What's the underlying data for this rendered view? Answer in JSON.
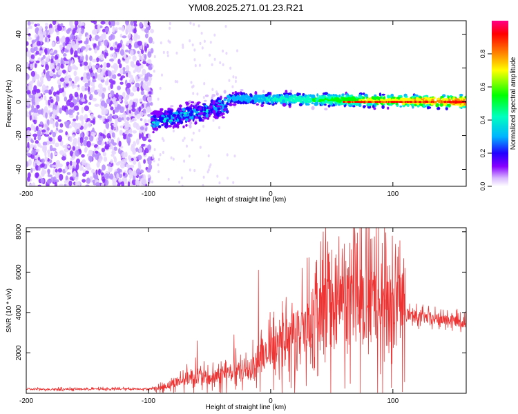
{
  "title": "YM08.2025.271.01.23.R21",
  "chart_data": [
    {
      "type": "heatmap",
      "name": "spectrogram",
      "xlabel": "Height of straight line (km)",
      "ylabel": "Frequency (Hz)",
      "xlim": [
        -200,
        160
      ],
      "ylim": [
        -50,
        48
      ],
      "xticks": [
        -200,
        -100,
        0,
        100
      ],
      "xtick_labels": [
        "-200",
        "-100",
        "0",
        "100"
      ],
      "yticks": [
        -40,
        -20,
        0,
        20,
        40
      ],
      "ytick_labels": [
        "-40",
        "-20",
        "0",
        "20",
        "40"
      ],
      "colorbar": {
        "label": "Normalized spectral amplitude",
        "range": [
          0,
          1
        ],
        "ticks": [
          0.0,
          0.2,
          0.4,
          0.6,
          0.8
        ],
        "tick_labels": [
          "0.0",
          "0.2",
          "0.4",
          "0.6",
          "0.8"
        ],
        "colors": [
          "#ffffff",
          "#d8b8ff",
          "#8800ff",
          "#2200ff",
          "#00b4ff",
          "#00ffc0",
          "#00ff00",
          "#ffff00",
          "#ff8800",
          "#ff0000",
          "#ff0088"
        ]
      },
      "features": [
        {
          "region": "noise",
          "x_range": [
            -200,
            -97
          ],
          "freq_range": [
            -50,
            48
          ],
          "amplitude": 0.2
        },
        {
          "region": "band",
          "x_range": [
            -97,
            -35
          ],
          "center_freq": [
            -12,
            -2
          ],
          "width_hz": 10,
          "amplitude": 0.45
        },
        {
          "region": "band",
          "x_range": [
            -35,
            160
          ],
          "center_freq": [
            2,
            0
          ],
          "width_hz": 6,
          "amplitude": 0.85
        }
      ]
    },
    {
      "type": "line",
      "name": "snr",
      "xlabel": "Height of straight line (km)",
      "ylabel": "SNR (10 * v/v)",
      "xlim": [
        -200,
        160
      ],
      "ylim": [
        0,
        8200
      ],
      "xticks": [
        -200,
        -100,
        0,
        100
      ],
      "xtick_labels": [
        "-200",
        "-100",
        "0",
        "100"
      ],
      "yticks": [
        2000,
        4000,
        6000,
        8000
      ],
      "ytick_labels": [
        "2000",
        "4000",
        "6000",
        "8000"
      ],
      "color": "#ee3333",
      "envelope": {
        "x": [
          -200,
          -100,
          -90,
          -80,
          -70,
          -60,
          -50,
          -40,
          -30,
          -20,
          -10,
          0,
          10,
          20,
          30,
          40,
          50,
          60,
          70,
          80,
          90,
          100,
          110,
          120,
          130,
          140,
          150,
          160
        ],
        "y": [
          200,
          220,
          260,
          500,
          700,
          900,
          700,
          900,
          1100,
          1100,
          1500,
          2000,
          2400,
          2800,
          3300,
          3800,
          4100,
          4300,
          4400,
          4400,
          4300,
          4100,
          3900,
          3800,
          3700,
          3650,
          3600,
          3500
        ]
      },
      "peaks": [
        {
          "x": 45,
          "y": 8200
        },
        {
          "x": 43,
          "y": 8000
        },
        {
          "x": 30,
          "y": 6700
        },
        {
          "x": -10,
          "y": 6100
        },
        {
          "x": 50,
          "y": 7100
        },
        {
          "x": 60,
          "y": 6200
        },
        {
          "x": 75,
          "y": 5800
        },
        {
          "x": -30,
          "y": 2900
        },
        {
          "x": -60,
          "y": 2600
        },
        {
          "x": 100,
          "y": 4800
        }
      ]
    }
  ]
}
